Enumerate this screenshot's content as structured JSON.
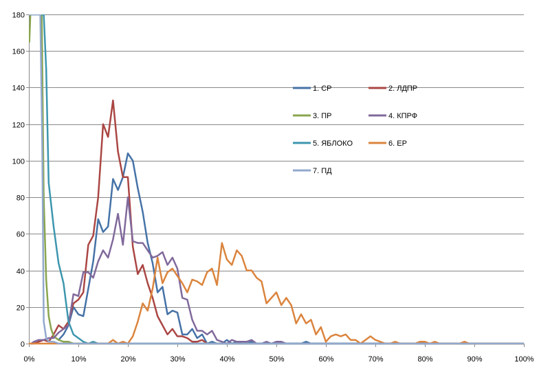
{
  "chart_data": {
    "type": "line",
    "title": "",
    "xlabel": "",
    "ylabel": "",
    "xlim": [
      0,
      100
    ],
    "ylim": [
      0,
      180
    ],
    "x_ticks": [
      0,
      10,
      20,
      30,
      40,
      50,
      60,
      70,
      80,
      90,
      100
    ],
    "x_tick_labels": [
      "0%",
      "10%",
      "20%",
      "30%",
      "40%",
      "50%",
      "60%",
      "70%",
      "80%",
      "90%",
      "100%"
    ],
    "y_ticks": [
      0,
      20,
      40,
      60,
      80,
      100,
      120,
      140,
      160,
      180
    ],
    "y_tick_labels": [
      "0",
      "20",
      "40",
      "60",
      "80",
      "100",
      "120",
      "140",
      "160",
      "180"
    ],
    "grid": "horizontal",
    "legend": "right",
    "series": [
      {
        "name": "1. СР",
        "color": "#4572A7",
        "x": [
          6,
          7,
          8,
          9,
          10,
          11,
          12,
          13,
          14,
          15,
          16,
          17,
          18,
          19,
          20,
          21,
          22,
          23,
          24,
          25,
          26,
          27,
          28,
          29,
          30,
          31,
          32,
          33,
          34,
          35,
          36,
          37,
          38,
          39,
          40,
          41,
          42,
          43,
          44,
          45,
          46,
          47,
          48,
          49,
          50,
          51,
          52,
          53,
          54,
          55,
          56,
          57,
          58,
          60,
          65,
          70,
          80,
          90,
          100
        ],
        "y": [
          2,
          5,
          10,
          20,
          16,
          15,
          30,
          45,
          68,
          61,
          64,
          90,
          84,
          91,
          104,
          100,
          85,
          72,
          55,
          44,
          28,
          31,
          16,
          18,
          17,
          5,
          5,
          8,
          3,
          5,
          0,
          1,
          0,
          0,
          2,
          0,
          1,
          0,
          0,
          1,
          0,
          0,
          0,
          0,
          0,
          0,
          0,
          0,
          0,
          0,
          1,
          0,
          0,
          0,
          0,
          0,
          0,
          0,
          0
        ]
      },
      {
        "name": "2. ЛДПР",
        "color": "#AA4643",
        "x": [
          0.5,
          1,
          2,
          3,
          4,
          5,
          6,
          7,
          8,
          9,
          10,
          11,
          12,
          13,
          14,
          15,
          16,
          17,
          18,
          19,
          20,
          21,
          22,
          23,
          24,
          25,
          26,
          27,
          28,
          29,
          30,
          31,
          32,
          33,
          34,
          35,
          36,
          37,
          38,
          40,
          45,
          50,
          60,
          70,
          80,
          90,
          100
        ],
        "y": [
          0,
          0,
          1,
          2,
          1,
          5,
          10,
          8,
          12,
          22,
          24,
          28,
          54,
          59,
          80,
          120,
          113,
          133,
          105,
          91,
          91,
          53,
          38,
          43,
          33,
          25,
          15,
          10,
          5,
          8,
          4,
          4,
          3,
          1,
          1,
          2,
          0,
          0,
          0,
          0,
          0,
          0,
          0,
          0,
          0,
          0,
          0
        ]
      },
      {
        "name": "3. ПР",
        "color": "#89A54E",
        "x": [
          0.1,
          0.3,
          1,
          2,
          2.6,
          3,
          3.5,
          4,
          4.5,
          5,
          6,
          7,
          8,
          9,
          10,
          15,
          20,
          30,
          40,
          50,
          60,
          70,
          80,
          90,
          100
        ],
        "y": [
          165,
          180,
          180,
          180,
          180,
          80,
          35,
          15,
          8,
          4,
          2,
          1,
          1,
          0,
          0,
          0,
          0,
          0,
          0,
          0,
          0,
          0,
          0,
          0,
          0
        ]
      },
      {
        "name": "4. КПРФ",
        "color": "#80699B",
        "x": [
          0.5,
          1,
          2,
          3,
          4,
          5,
          6,
          7,
          8,
          9,
          10,
          11,
          12,
          13,
          14,
          15,
          16,
          17,
          18,
          19,
          20,
          21,
          22,
          23,
          24,
          25,
          26,
          27,
          28,
          29,
          30,
          31,
          32,
          33,
          34,
          35,
          36,
          37,
          38,
          39,
          40,
          41,
          42,
          43,
          44,
          45,
          46,
          47,
          48,
          49,
          50,
          51,
          52,
          53,
          60,
          70,
          80,
          90,
          100
        ],
        "y": [
          0,
          1,
          2,
          2,
          3,
          3,
          6,
          8,
          10,
          27,
          26,
          39,
          39,
          36,
          45,
          51,
          47,
          57,
          71,
          54,
          80,
          56,
          55,
          55,
          51,
          47,
          48,
          50,
          43,
          47,
          41,
          25,
          24,
          13,
          7,
          7,
          5,
          7,
          2,
          1,
          0,
          2,
          1,
          1,
          1,
          2,
          0,
          0,
          1,
          0,
          1,
          1,
          0,
          0,
          0,
          0,
          0,
          0,
          0
        ]
      },
      {
        "name": "5. ЯБЛОКО",
        "color": "#3D96AE",
        "x": [
          0.2,
          0.3,
          2,
          3,
          3.5,
          4,
          5,
          6,
          7,
          8,
          9,
          10,
          11,
          12,
          13,
          14,
          15,
          20,
          30,
          40,
          50,
          60,
          70,
          80,
          90,
          100
        ],
        "y": [
          180,
          180,
          180,
          180,
          150,
          88,
          64,
          44,
          33,
          12,
          5,
          3,
          1,
          0,
          1,
          0,
          0,
          0,
          0,
          0,
          0,
          0,
          0,
          0,
          0,
          0
        ]
      },
      {
        "name": "6. ЕР",
        "color": "#DB843D",
        "x": [
          0,
          5,
          10,
          15,
          16,
          17,
          18,
          19,
          20,
          21,
          22,
          23,
          24,
          25,
          26,
          27,
          28,
          29,
          30,
          31,
          32,
          33,
          34,
          35,
          36,
          37,
          38,
          39,
          40,
          41,
          42,
          43,
          44,
          45,
          46,
          47,
          48,
          49,
          50,
          51,
          52,
          53,
          54,
          55,
          56,
          57,
          58,
          59,
          60,
          61,
          62,
          63,
          64,
          65,
          66,
          67,
          68,
          69,
          70,
          71,
          72,
          73,
          74,
          75,
          76,
          77,
          78,
          79,
          80,
          81,
          82,
          83,
          84,
          85,
          86,
          87,
          88,
          89,
          90,
          95,
          100
        ],
        "y": [
          0,
          0,
          0,
          0,
          0,
          2,
          0,
          1,
          0,
          4,
          12,
          22,
          18,
          30,
          47,
          33,
          39,
          41,
          37,
          33,
          28,
          35,
          34,
          32,
          39,
          41,
          32,
          55,
          46,
          43,
          51,
          48,
          40,
          40,
          36,
          34,
          22,
          25,
          28,
          21,
          25,
          21,
          11,
          16,
          11,
          13,
          5,
          9,
          1,
          4,
          5,
          4,
          5,
          2,
          2,
          0,
          2,
          4,
          2,
          1,
          0,
          0,
          1,
          0,
          0,
          0,
          0,
          1,
          1,
          0,
          1,
          0,
          0,
          0,
          0,
          0,
          1,
          0,
          0,
          0,
          0
        ]
      },
      {
        "name": "7. ПД",
        "color": "#92A8CD",
        "x": [
          0.1,
          1,
          1.7,
          2.3,
          2.7,
          3,
          3.5,
          4,
          5,
          6,
          7,
          8,
          10,
          15,
          20,
          30,
          40,
          50,
          60,
          70,
          80,
          90,
          100
        ],
        "y": [
          180,
          180,
          180,
          180,
          110,
          12,
          3,
          1,
          1,
          0,
          0,
          0,
          0,
          0,
          0,
          0,
          0,
          0,
          0,
          0,
          0,
          0,
          0
        ]
      }
    ]
  }
}
